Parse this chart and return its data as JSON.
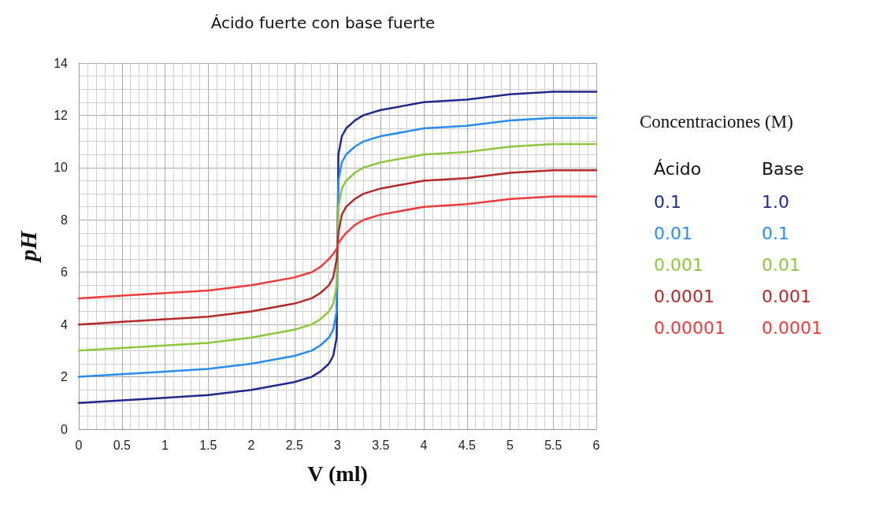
{
  "chart_data": {
    "type": "line",
    "title": "Ácido fuerte con base fuerte",
    "xlabel": "V (ml)",
    "ylabel": "pH",
    "legend_title": "Concentraciones (M)",
    "x": [
      0,
      0.5,
      1,
      1.5,
      2,
      2.5,
      2.7,
      2.8,
      2.9,
      2.95,
      2.99,
      3.0,
      3.01,
      3.05,
      3.1,
      3.2,
      3.3,
      3.5,
      4,
      4.5,
      5,
      5.5,
      6
    ],
    "series": [
      {
        "name": "0.1",
        "color": "#1f2a8c",
        "values": [
          1.0,
          1.1,
          1.2,
          1.3,
          1.5,
          1.8,
          2.0,
          2.2,
          2.5,
          2.8,
          3.5,
          7.0,
          10.5,
          11.2,
          11.5,
          11.8,
          12.0,
          12.2,
          12.5,
          12.6,
          12.8,
          12.9,
          12.9
        ]
      },
      {
        "name": "0.01",
        "color": "#2b8cf0",
        "values": [
          2.0,
          2.1,
          2.2,
          2.3,
          2.5,
          2.8,
          3.0,
          3.2,
          3.5,
          3.8,
          4.5,
          7.0,
          9.5,
          10.2,
          10.5,
          10.8,
          11.0,
          11.2,
          11.5,
          11.6,
          11.8,
          11.9,
          11.9
        ]
      },
      {
        "name": "0.001",
        "color": "#8dc63f",
        "values": [
          3.0,
          3.1,
          3.2,
          3.3,
          3.5,
          3.8,
          4.0,
          4.2,
          4.5,
          4.8,
          5.5,
          7.0,
          8.5,
          9.2,
          9.5,
          9.8,
          10.0,
          10.2,
          10.5,
          10.6,
          10.8,
          10.9,
          10.9
        ]
      },
      {
        "name": "0.0001",
        "color": "#b22a2a",
        "values": [
          4.0,
          4.1,
          4.2,
          4.3,
          4.5,
          4.8,
          5.0,
          5.2,
          5.5,
          5.8,
          6.5,
          7.0,
          7.5,
          8.2,
          8.5,
          8.8,
          9.0,
          9.2,
          9.5,
          9.6,
          9.8,
          9.9,
          9.9
        ]
      },
      {
        "name": "0.00001",
        "color": "#ef3b3b",
        "values": [
          5.0,
          5.1,
          5.2,
          5.3,
          5.5,
          5.8,
          6.0,
          6.2,
          6.5,
          6.7,
          6.9,
          7.0,
          7.1,
          7.3,
          7.5,
          7.8,
          8.0,
          8.2,
          8.5,
          8.6,
          8.8,
          8.9,
          8.9
        ]
      }
    ],
    "annotations": [
      "Ácido",
      "Base",
      "1.0",
      "0.1",
      "0.01",
      "0.001",
      "0.0001"
    ],
    "xlim": [
      0,
      6
    ],
    "xticks": [
      0,
      0.5,
      1,
      1.5,
      2,
      2.5,
      3,
      3.5,
      4,
      4.5,
      5,
      5.5,
      6
    ],
    "ylim": [
      0,
      14
    ],
    "yticks": [
      0,
      2,
      4,
      6,
      8,
      10,
      12,
      14
    ],
    "grid": true,
    "marker": "none",
    "line_style": "solid"
  }
}
